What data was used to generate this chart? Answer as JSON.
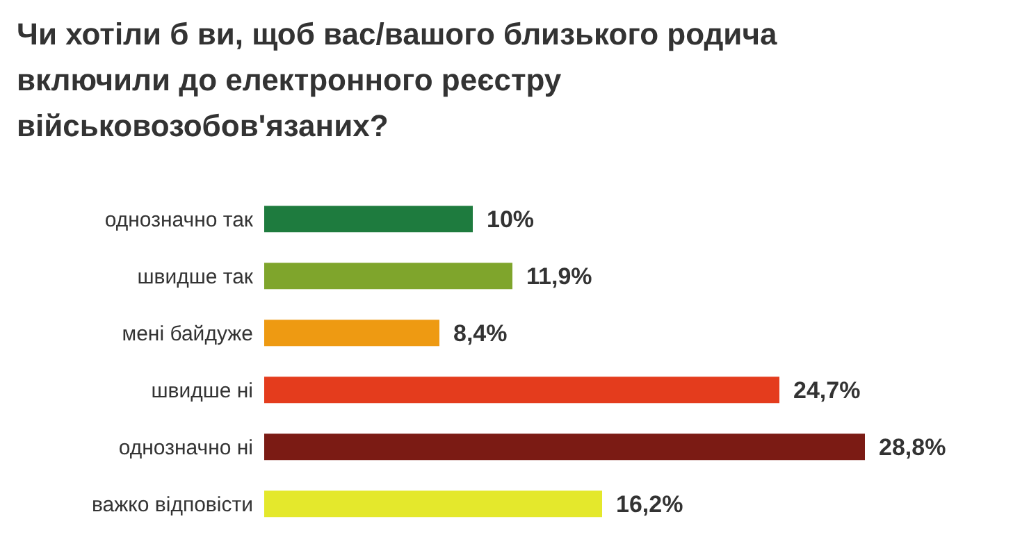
{
  "chart_data": {
    "type": "bar",
    "orientation": "horizontal",
    "title": "Чи хотіли б ви, щоб вас/вашого близького родича включили до електронного реєстру військовозобов'язаних?",
    "categories": [
      "однозначно так",
      "швидше так",
      "мені байдуже",
      "швидше ні",
      "однозначно ні",
      "важко відповісти"
    ],
    "values": [
      10,
      11.9,
      8.4,
      24.7,
      28.8,
      16.2
    ],
    "value_labels": [
      "10%",
      "11,9%",
      "8,4%",
      "24,7%",
      "28,8%",
      "16,2%"
    ],
    "colors": [
      "#1e7b3e",
      "#7fa52c",
      "#ee9a12",
      "#e43c1d",
      "#7b1b14",
      "#e4e82c"
    ]
  }
}
